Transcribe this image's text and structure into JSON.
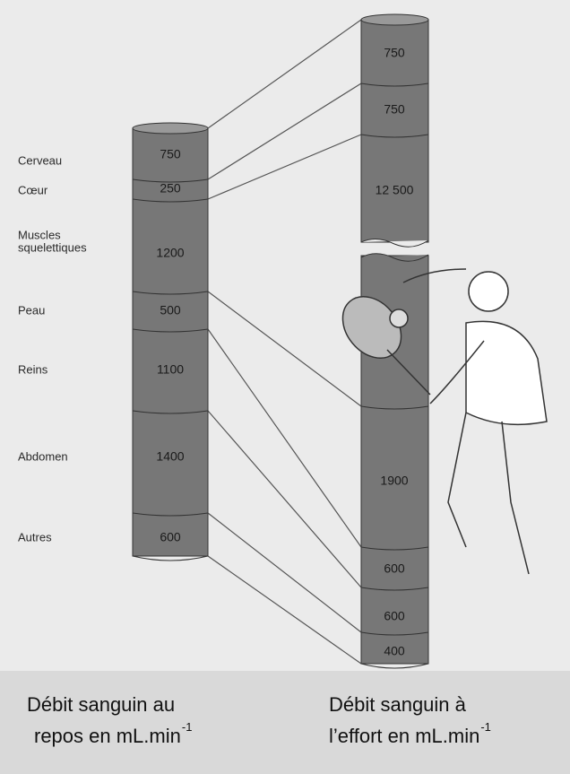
{
  "rest_column": {
    "segments": [
      {
        "label_lines": [
          "Cerveau"
        ],
        "value": "750"
      },
      {
        "label_lines": [
          "Cœur"
        ],
        "value": "250"
      },
      {
        "label_lines": [
          "Muscles",
          "squelettiques"
        ],
        "value": "1200"
      },
      {
        "label_lines": [
          "Peau"
        ],
        "value": "500"
      },
      {
        "label_lines": [
          "Reins"
        ],
        "value": "1100"
      },
      {
        "label_lines": [
          "Abdomen"
        ],
        "value": "1400"
      },
      {
        "label_lines": [
          "Autres"
        ],
        "value": "600"
      }
    ]
  },
  "effort_column": {
    "segments": [
      {
        "value": "750"
      },
      {
        "value": "750"
      },
      {
        "value": "12 500"
      },
      {
        "value": "1900"
      },
      {
        "value": "600"
      },
      {
        "value": "600"
      },
      {
        "value": "400"
      }
    ]
  },
  "captions": [
    {
      "lines": [
        "Débit sanguin au",
        "repos en mL.min"
      ],
      "superscript": "-1"
    },
    {
      "lines": [
        "Débit sanguin à",
        "l’effort en mL.min"
      ],
      "superscript": "-1"
    }
  ]
}
